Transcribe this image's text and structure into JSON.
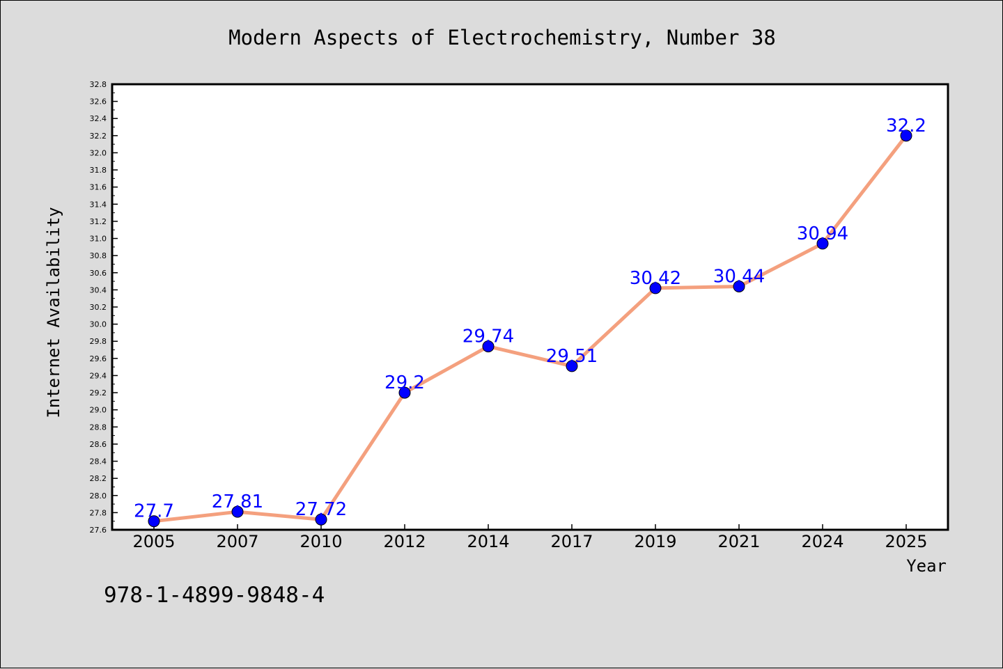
{
  "chart_data": {
    "type": "line",
    "title": "Modern Aspects of Electrochemistry, Number 38",
    "xlabel": "Year",
    "ylabel": "Internet Availability",
    "categories": [
      "2005",
      "2007",
      "2010",
      "2012",
      "2014",
      "2017",
      "2019",
      "2021",
      "2024",
      "2025"
    ],
    "series": [
      {
        "values": [
          27.7,
          27.81,
          27.72,
          29.2,
          29.74,
          29.51,
          30.42,
          30.44,
          30.94,
          32.2
        ]
      }
    ],
    "data_labels": [
      "27.7",
      "27.81",
      "27.72",
      "29.2",
      "29.74",
      "29.51",
      "30.42",
      "30.44",
      "30.94",
      "32.2"
    ],
    "ylim": [
      27.6,
      32.8
    ],
    "yticks": [
      "27.6",
      "27.8",
      "28.0",
      "28.2",
      "28.4",
      "28.6",
      "28.8",
      "29.0",
      "29.2",
      "29.4",
      "29.6",
      "29.8",
      "30.0",
      "30.2",
      "30.4",
      "30.6",
      "30.8",
      "31.0",
      "31.2",
      "31.4",
      "31.6",
      "31.8",
      "32.0",
      "32.2",
      "32.4",
      "32.6",
      "32.8"
    ],
    "grid": false,
    "legend": "none",
    "colors": {
      "line": "#f4a07e",
      "marker": "#0000ff",
      "label": "#0000ff",
      "background": "#dcdcdc",
      "plot_background": "#ffffff"
    }
  },
  "footer": {
    "isbn": "978-1-4899-9848-4"
  }
}
